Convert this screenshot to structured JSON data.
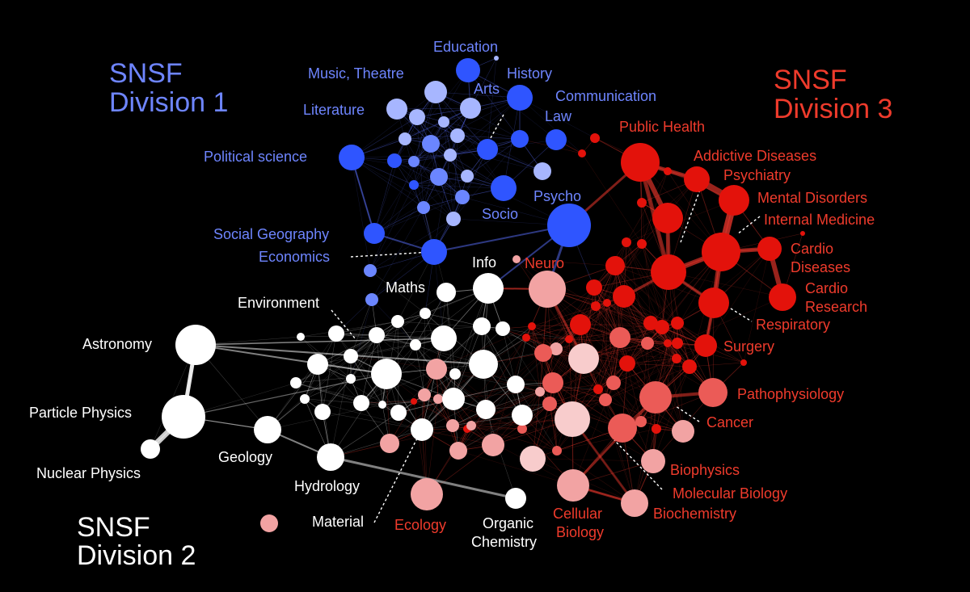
{
  "colors": {
    "background": "#000000",
    "division1": "#6e85ff",
    "division2": "#ffffff",
    "division3": "#ef3b2c",
    "node_blue_strong": "#2f55ff",
    "node_blue_light": "#a7b6ff",
    "node_red_strong": "#e3120b",
    "node_red_light": "#f2a3a3",
    "node_white": "#ffffff",
    "edge_blue": "#5a6fff",
    "edge_red": "#ff3b2f",
    "edge_white": "#ffffff",
    "leader": "#ffffff"
  },
  "divisions": [
    {
      "id": "div1",
      "lines": [
        "SNSF",
        "Division 1"
      ]
    },
    {
      "id": "div2",
      "lines": [
        "SNSF",
        "Division 2"
      ]
    },
    {
      "id": "div3",
      "lines": [
        "SNSF",
        "Division 3"
      ]
    }
  ],
  "labels": {
    "education": "Education",
    "history": "History",
    "music_theatre": "Music, Theatre",
    "arts": "Arts",
    "communication": "Communication",
    "literature": "Literature",
    "law": "Law",
    "political_science": "Political science",
    "psycho": "Psycho",
    "socio": "Socio",
    "social_geography": "Social Geography",
    "economics": "Economics",
    "info": "Info",
    "neuro": "Neuro",
    "maths": "Maths",
    "environment": "Environment",
    "astronomy": "Astronomy",
    "particle_physics": "Particle Physics",
    "nuclear_physics": "Nuclear Physics",
    "geology": "Geology",
    "hydrology": "Hydrology",
    "material": "Material",
    "ecology": "Ecology",
    "organic_chemistry_1": "Organic",
    "organic_chemistry_2": "Chemistry",
    "cellular_biology_1": "Cellular",
    "cellular_biology_2": "Biology",
    "biochemistry": "Biochemistry",
    "molecular_biology": "Molecular Biology",
    "biophysics": "Biophysics",
    "cancer": "Cancer",
    "pathophysiology": "Pathophysiology",
    "surgery": "Surgery",
    "respiratory": "Respiratory",
    "cardio_research_1": "Cardio",
    "cardio_research_2": "Research",
    "cardio_diseases_1": "Cardio",
    "cardio_diseases_2": "Diseases",
    "internal_medicine": "Internal Medicine",
    "mental_disorders": "Mental Disorders",
    "psychiatry": "Psychiatry",
    "addictive_diseases": "Addictive Diseases",
    "public_health": "Public Health"
  }
}
